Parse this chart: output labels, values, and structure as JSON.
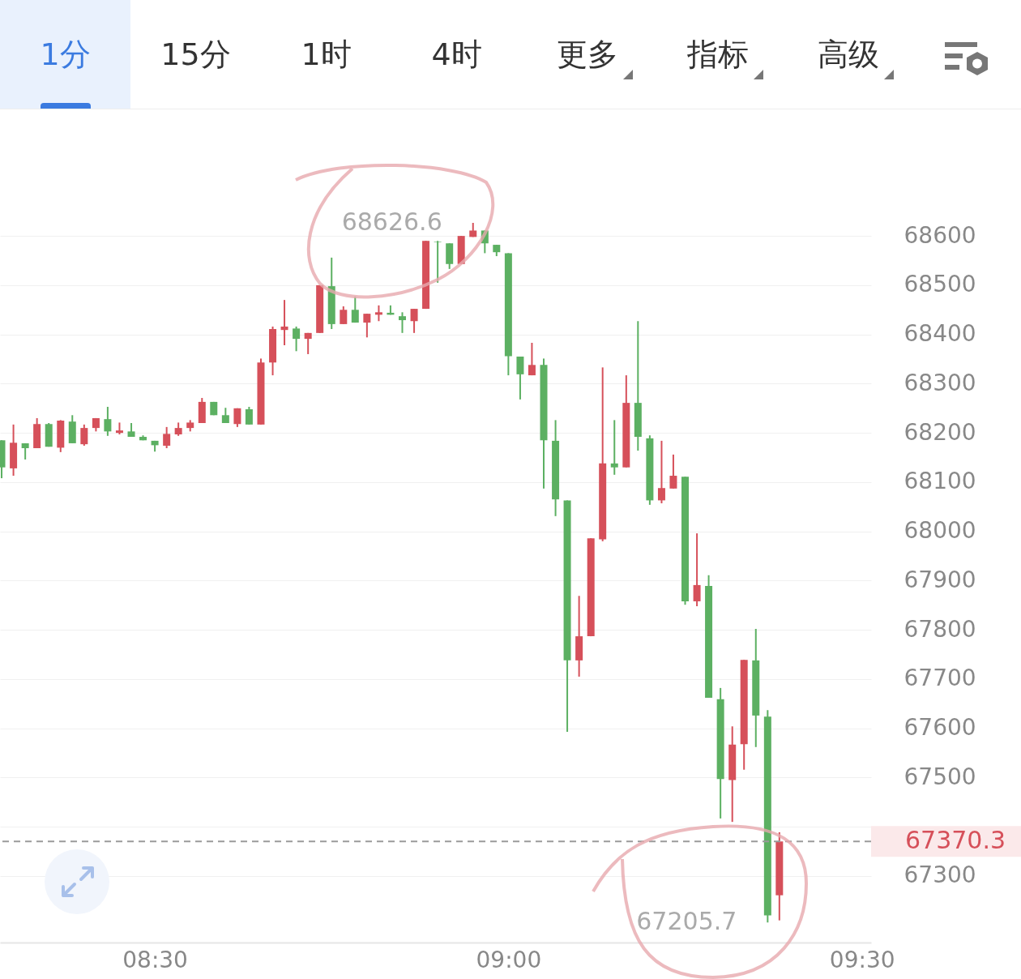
{
  "chart_data": {
    "type": "candlestick",
    "x": [
      8.2833,
      8.3,
      8.3167,
      8.3333,
      8.35,
      8.3667,
      8.3833,
      8.4,
      8.4167,
      8.4333,
      8.45,
      8.4667,
      8.4833,
      8.5,
      8.5167,
      8.5333,
      8.55,
      8.5667,
      8.5833,
      8.6,
      8.6167,
      8.6333,
      8.65,
      8.6667,
      8.6833,
      8.7,
      8.7167,
      8.7333,
      8.75,
      8.7667,
      8.7833,
      8.8,
      8.8167,
      8.8333,
      8.85,
      8.8667,
      8.8833,
      8.9,
      8.9167,
      8.9333,
      8.95,
      8.9667,
      8.9833,
      9,
      9.0167,
      9.0333,
      9.05,
      9.0667,
      9.0833,
      9.1,
      9.1167,
      9.1333,
      9.15,
      9.1667,
      9.1833,
      9.2,
      9.2167,
      9.2333,
      9.25,
      9.2667,
      9.2833,
      9.3,
      9.3167,
      9.3333,
      9.35,
      9.3667,
      9.3833
    ],
    "ohlc": [
      [
        68185,
        68185,
        68108,
        68130
      ],
      [
        68128,
        68217,
        68113,
        68180
      ],
      [
        68179,
        68179,
        68146,
        68169
      ],
      [
        68169,
        68230,
        68169,
        68218
      ],
      [
        68218,
        68220,
        68172,
        68172
      ],
      [
        68170,
        68226,
        68161,
        68225
      ],
      [
        68223,
        68236,
        68179,
        68179
      ],
      [
        68177,
        68217,
        68174,
        68210
      ],
      [
        68210,
        68230,
        68203,
        68230
      ],
      [
        68228,
        68253,
        68194,
        68203
      ],
      [
        68200,
        68221,
        68197,
        68205
      ],
      [
        68203,
        68220,
        68192,
        68192
      ],
      [
        68192,
        68195,
        68185,
        68185
      ],
      [
        68184,
        68184,
        68162,
        68175
      ],
      [
        68174,
        68212,
        68169,
        68198
      ],
      [
        68197,
        68221,
        68194,
        68210
      ],
      [
        68210,
        68226,
        68203,
        68221
      ],
      [
        68220,
        68271,
        68220,
        68263
      ],
      [
        68263,
        68263,
        68236,
        68236
      ],
      [
        68236,
        68251,
        68220,
        68220
      ],
      [
        68218,
        68250,
        68212,
        68250
      ],
      [
        68248,
        68253,
        68217,
        68217
      ],
      [
        68217,
        68351,
        68217,
        68343
      ],
      [
        68343,
        68416,
        68317,
        68411
      ],
      [
        68409,
        68470,
        68378,
        68416
      ],
      [
        68412,
        68416,
        68366,
        68391
      ],
      [
        68391,
        68403,
        68360,
        68403
      ],
      [
        68403,
        68500,
        68403,
        68500
      ],
      [
        68498,
        68556,
        68411,
        68421
      ],
      [
        68421,
        68457,
        68421,
        68450
      ],
      [
        68450,
        68477,
        68424,
        68424
      ],
      [
        68424,
        68442,
        68394,
        68442
      ],
      [
        68440,
        68459,
        68427,
        68445
      ],
      [
        68444,
        68459,
        68440,
        68440
      ],
      [
        68437,
        68445,
        68403,
        68429
      ],
      [
        68427,
        68452,
        68403,
        68452
      ],
      [
        68452,
        68590,
        68452,
        68590
      ],
      [
        68588,
        68590,
        68505,
        68587
      ],
      [
        68585,
        68585,
        68533,
        68543
      ],
      [
        68543,
        68600,
        68543,
        68600
      ],
      [
        68598,
        68626.6,
        68598,
        68611
      ],
      [
        68611,
        68611,
        68565,
        68585
      ],
      [
        68582,
        68582,
        68559,
        68567
      ],
      [
        68565,
        68565,
        68317,
        68356
      ],
      [
        68355,
        68355,
        68268,
        68319
      ],
      [
        68317,
        68383,
        68317,
        68338
      ],
      [
        68338,
        68351,
        68087,
        68185
      ],
      [
        68184,
        68226,
        68031,
        68065
      ],
      [
        68063,
        68063,
        67593,
        67738
      ],
      [
        67738,
        67869,
        67705,
        67787
      ],
      [
        67787,
        67986,
        67787,
        67986
      ],
      [
        67984,
        68333,
        67980,
        68138
      ],
      [
        68138,
        68226,
        68115,
        68130
      ],
      [
        68130,
        68317,
        68130,
        68261
      ],
      [
        68261,
        68427,
        68164,
        68192
      ],
      [
        68189,
        68195,
        68054,
        68063
      ],
      [
        68063,
        68184,
        68057,
        68088
      ],
      [
        68087,
        68156,
        68087,
        68113
      ],
      [
        68111,
        68111,
        67851,
        67858
      ],
      [
        67858,
        67996,
        67848,
        67891
      ],
      [
        67889,
        67911,
        67662,
        67662
      ],
      [
        67659,
        67682,
        67417,
        67497
      ],
      [
        67495,
        67604,
        67410,
        67567
      ],
      [
        67568,
        67739,
        67516,
        67739
      ],
      [
        67738,
        67802,
        67562,
        67626
      ],
      [
        67624,
        67637,
        67205.7,
        67220
      ],
      [
        67261,
        67389,
        67210,
        67370.3
      ]
    ],
    "colors": [
      "#5cb062",
      "#d6505a",
      "#5cb062",
      "#d6505a",
      "#5cb062",
      "#d6505a",
      "#5cb062",
      "#d6505a",
      "#d6505a",
      "#5cb062",
      "#d6505a",
      "#5cb062",
      "#5cb062",
      "#5cb062",
      "#d6505a",
      "#d6505a",
      "#d6505a",
      "#d6505a",
      "#5cb062",
      "#5cb062",
      "#d6505a",
      "#5cb062",
      "#d6505a",
      "#d6505a",
      "#d6505a",
      "#5cb062",
      "#d6505a",
      "#d6505a",
      "#5cb062",
      "#d6505a",
      "#5cb062",
      "#d6505a",
      "#d6505a",
      "#5cb062",
      "#5cb062",
      "#d6505a",
      "#d6505a",
      "#5cb062",
      "#5cb062",
      "#d6505a",
      "#d6505a",
      "#5cb062",
      "#5cb062",
      "#5cb062",
      "#5cb062",
      "#d6505a",
      "#5cb062",
      "#5cb062",
      "#5cb062",
      "#d6505a",
      "#d6505a",
      "#d6505a",
      "#5cb062",
      "#d6505a",
      "#5cb062",
      "#5cb062",
      "#d6505a",
      "#d6505a",
      "#5cb062",
      "#d6505a",
      "#5cb062",
      "#5cb062",
      "#d6505a",
      "#d6505a",
      "#5cb062",
      "#5cb062",
      "#d6505a"
    ],
    "xlim": [
      8.281,
      9.513
    ],
    "xticks": [
      {
        "value": 8.5,
        "label": "08:30"
      },
      {
        "value": 9,
        "label": "09:00"
      },
      {
        "value": 9.5,
        "label": "09:30"
      }
    ],
    "ylim": [
      67165,
      68857
    ],
    "yticks": [
      67300,
      {
        "value": 67400,
        "label": null
      },
      67500,
      67600,
      67700,
      67800,
      67900,
      68000,
      68100,
      68200,
      68300,
      68400,
      68500,
      68600
    ],
    "grid": "y",
    "ref_lines": [
      {
        "axis": "y",
        "value": 67370.3,
        "label": "67370.3",
        "color": "#9a9a9a",
        "line_style": "dashed"
      }
    ],
    "annotations": [
      "1分",
      "15分",
      "1时",
      "4时",
      "更多",
      "指标",
      "高级",
      {
        "text": "68626.6",
        "x": 8.95,
        "y": 68626.6
      },
      {
        "text": "67205.7",
        "x": 9.3667,
        "y": 67205.7
      }
    ]
  }
}
